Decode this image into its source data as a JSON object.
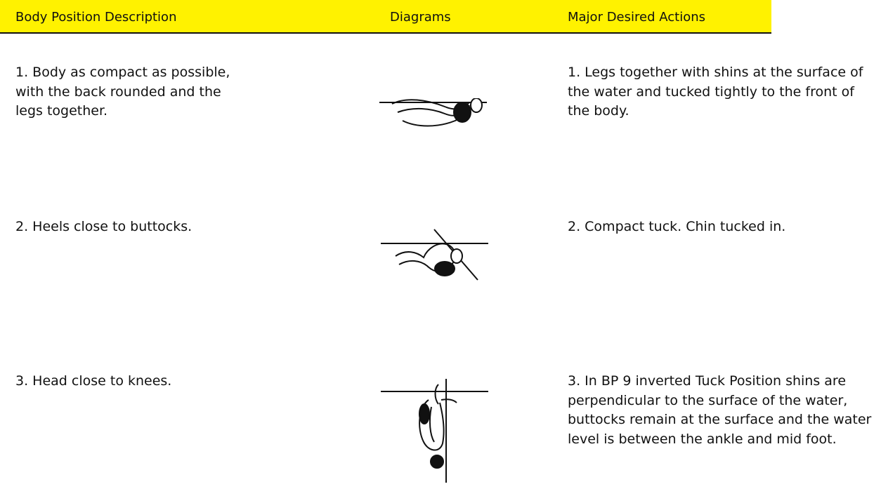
{
  "header": {
    "columns": [
      "Body Position Description",
      "Diagrams",
      "Major Desired Actions"
    ]
  },
  "rows": [
    {
      "description": "1. Body as compact as possible, with the back rounded and the legs together.",
      "actions": "1. Legs together with shins at the surface of the water and tucked tightly to the front of the body."
    },
    {
      "description": "2. Heels close to buttocks.",
      "actions": "2. Compact tuck. Chin tucked in."
    },
    {
      "description": "3. Head close to knees.",
      "actions": "3. In BP 9 inverted Tuck Position shins are perpendicular to the surface of the water, buttocks remain at the surface and the water level is between the ankle and mid foot."
    }
  ]
}
